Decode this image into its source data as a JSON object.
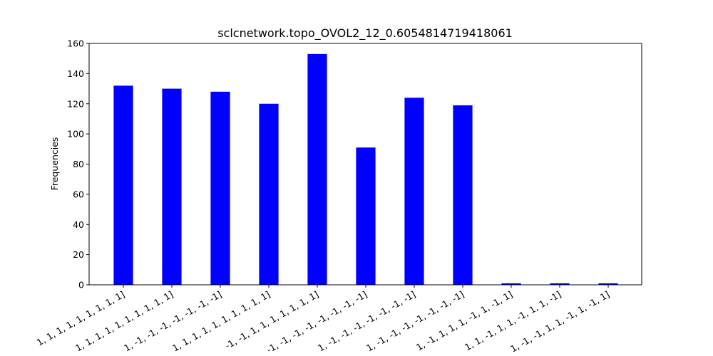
{
  "chart_data": {
    "type": "bar",
    "title": "sclcnetwork.topo_OVOL2_12_0.6054814719418061",
    "y_label": "Frequencies",
    "categories": [
      "1, 1, 1, 1, 1, 1, 1, 1, 1]",
      "1, 1, 1, 1, 1, 1, 1, 1, 1, 1]",
      "1, -1, -1, -1, -1, -1, -1, -1]",
      "1, 1, 1, 1, 1, 1, 1, 1, 1, 1]",
      "-1, -1, 1, 1, 1, 1, 1, 1, 1]",
      "-1, -1, -1, -1, -1, -1, -1, -1]",
      "1, -1, -1, -1, -1, -1, -1, -1]",
      "1, -1, -1, -1, -1, -1, -1, -1]",
      "1, -1, 1, 1, 1, -1, 1, -1, 1]",
      "1, 1, -1, 1, 1, -1, 1, 1, -1]",
      "1, -1, -1, 1, 1, -1, 1, -1, 1]"
    ],
    "values": [
      132,
      130,
      128,
      120,
      153,
      91,
      124,
      119,
      1,
      1,
      1
    ],
    "color": "#0000ff",
    "ylim": [
      0,
      160
    ],
    "yticks": [
      0,
      20,
      40,
      60,
      80,
      100,
      120,
      140,
      160
    ],
    "grid": false
  }
}
